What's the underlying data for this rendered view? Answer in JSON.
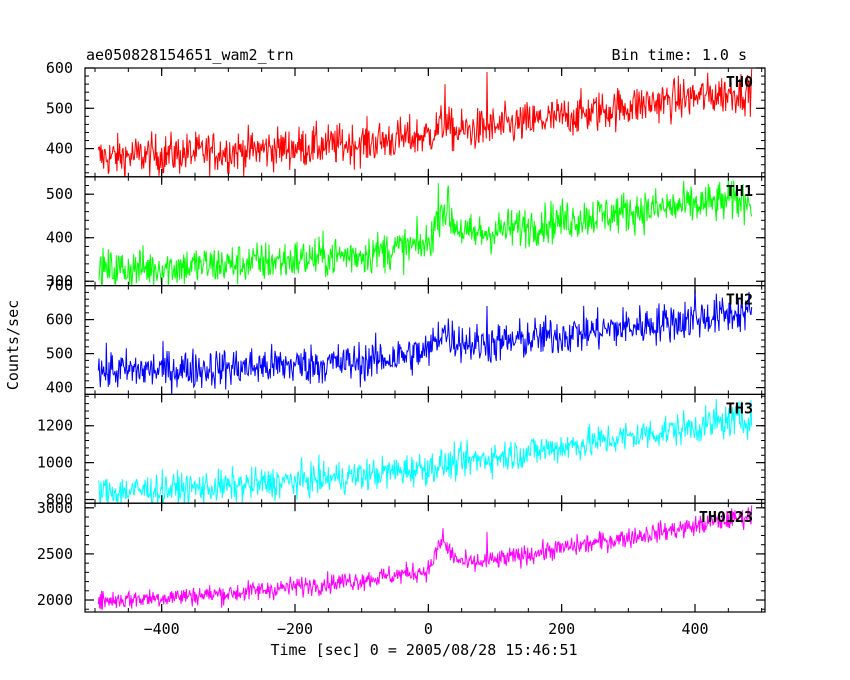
{
  "header": {
    "left_title": "ae050828154651_wam2_trn",
    "right_title": "Bin time: 1.0 s"
  },
  "axes": {
    "ylabel": "Counts/sec",
    "xlabel": "Time [sec] 0 = 2005/08/28 15:46:51",
    "xlim": [
      -515,
      505
    ],
    "xticks": [
      -400,
      -200,
      0,
      200,
      400
    ],
    "xtick_labels": [
      "−400",
      "−200",
      "0",
      "200",
      "400"
    ]
  },
  "chart_data": {
    "type": "line",
    "title": "ae050828154651_wam2_trn",
    "subtitle": "Bin time: 1.0 s",
    "xlabel": "Time [sec] 0 = 2005/08/28 15:46:51",
    "ylabel": "Counts/sec",
    "x_range": [
      -495,
      485
    ],
    "bin_time_s": 1.0,
    "grid": false,
    "series": [
      {
        "name": "TH0",
        "color": "#ff0000",
        "ylim": [
          330,
          600
        ],
        "yticks": [
          400,
          500,
          600
        ],
        "noise": 26,
        "envelope_x": [
          -495,
          -300,
          -100,
          0,
          20,
          40,
          80,
          100,
          200,
          300,
          400,
          485
        ],
        "envelope_y": [
          378,
          393,
          413,
          433,
          458,
          442,
          448,
          452,
          478,
          505,
          528,
          543
        ],
        "spikes": [
          {
            "x": 25,
            "y": 560
          },
          {
            "x": 88,
            "y": 590
          }
        ]
      },
      {
        "name": "TH1",
        "color": "#00ff00",
        "ylim": [
          290,
          540
        ],
        "yticks": [
          300,
          400,
          500
        ],
        "noise": 24,
        "envelope_x": [
          -495,
          -300,
          -100,
          0,
          20,
          40,
          60,
          100,
          200,
          300,
          400,
          485
        ],
        "envelope_y": [
          326,
          338,
          362,
          385,
          475,
          430,
          405,
          415,
          440,
          460,
          475,
          490
        ],
        "spikes": [
          {
            "x": 15,
            "y": 525
          },
          {
            "x": 30,
            "y": 520
          }
        ]
      },
      {
        "name": "TH2",
        "color": "#0000ff",
        "ylim": [
          380,
          700
        ],
        "yticks": [
          400,
          500,
          600,
          700
        ],
        "noise": 30,
        "envelope_x": [
          -495,
          -300,
          -100,
          0,
          20,
          40,
          80,
          100,
          200,
          300,
          400,
          485
        ],
        "envelope_y": [
          448,
          458,
          475,
          505,
          570,
          540,
          525,
          530,
          555,
          578,
          602,
          625
        ],
        "spikes": [
          {
            "x": 88,
            "y": 640
          },
          {
            "x": 400,
            "y": 700
          }
        ]
      },
      {
        "name": "TH3",
        "color": "#00ffff",
        "ylim": [
          780,
          1370
        ],
        "yticks": [
          800,
          1000,
          1200
        ],
        "noise": 45,
        "envelope_x": [
          -495,
          -300,
          -100,
          0,
          100,
          200,
          300,
          400,
          485
        ],
        "envelope_y": [
          840,
          870,
          930,
          975,
          1030,
          1085,
          1140,
          1195,
          1240
        ],
        "spikes": [
          {
            "x": 432,
            "y": 1345
          },
          {
            "x": 470,
            "y": 1335
          }
        ]
      },
      {
        "name": "TH0123",
        "color": "#ff00ff",
        "ylim": [
          1870,
          3050
        ],
        "yticks": [
          2000,
          2500,
          3000
        ],
        "noise": 55,
        "envelope_x": [
          -495,
          -300,
          -100,
          0,
          20,
          40,
          60,
          100,
          200,
          300,
          400,
          485
        ],
        "envelope_y": [
          1990,
          2070,
          2220,
          2320,
          2640,
          2450,
          2390,
          2430,
          2560,
          2680,
          2800,
          2920
        ],
        "spikes": [
          {
            "x": 22,
            "y": 2780
          },
          {
            "x": 88,
            "y": 2740
          }
        ]
      }
    ]
  }
}
